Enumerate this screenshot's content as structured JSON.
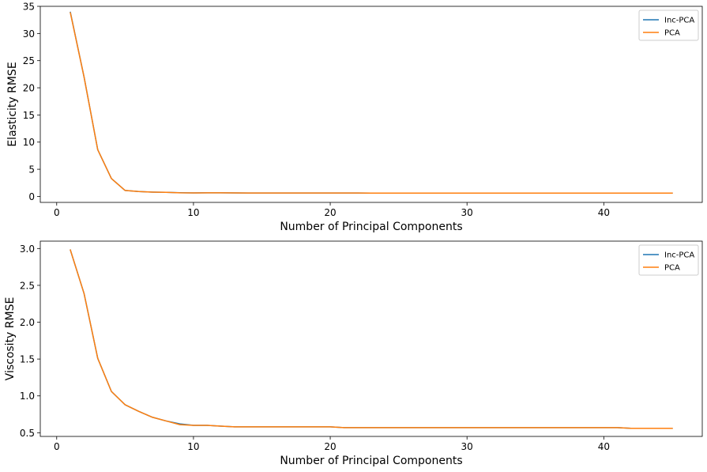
{
  "chart_data": [
    {
      "type": "line",
      "xlabel": "Number of Principal Components",
      "ylabel": "Elasticity RMSE",
      "xlim": [
        -1.2,
        47.2
      ],
      "ylim": [
        -1.1,
        35.0
      ],
      "xticks": [
        0,
        10,
        20,
        30,
        40
      ],
      "yticks": [
        0,
        5,
        10,
        15,
        20,
        25,
        30,
        35
      ],
      "grid": false,
      "legend_position": "top-right",
      "x": [
        1,
        2,
        3,
        4,
        5,
        6,
        7,
        8,
        9,
        10,
        11,
        12,
        13,
        14,
        15,
        16,
        17,
        18,
        19,
        20,
        21,
        22,
        23,
        24,
        25,
        26,
        27,
        28,
        29,
        30,
        31,
        32,
        33,
        34,
        35,
        36,
        37,
        38,
        39,
        40,
        41,
        42,
        43,
        44,
        45
      ],
      "series": [
        {
          "name": "Inc-PCA",
          "color": "#1f77b4",
          "values": [
            33.9,
            22.0,
            8.6,
            3.3,
            1.1,
            0.9,
            0.8,
            0.75,
            0.68,
            0.65,
            0.67,
            0.66,
            0.64,
            0.63,
            0.63,
            0.63,
            0.62,
            0.62,
            0.62,
            0.62,
            0.62,
            0.62,
            0.61,
            0.61,
            0.61,
            0.61,
            0.61,
            0.61,
            0.61,
            0.61,
            0.61,
            0.61,
            0.61,
            0.61,
            0.61,
            0.61,
            0.61,
            0.61,
            0.61,
            0.61,
            0.61,
            0.61,
            0.61,
            0.61,
            0.61
          ]
        },
        {
          "name": "PCA",
          "color": "#ff7f0e",
          "values": [
            33.8,
            22.0,
            8.6,
            3.3,
            1.1,
            0.9,
            0.8,
            0.75,
            0.67,
            0.65,
            0.66,
            0.66,
            0.64,
            0.63,
            0.63,
            0.63,
            0.62,
            0.62,
            0.62,
            0.62,
            0.62,
            0.62,
            0.61,
            0.61,
            0.61,
            0.61,
            0.61,
            0.61,
            0.61,
            0.61,
            0.61,
            0.61,
            0.61,
            0.61,
            0.61,
            0.61,
            0.61,
            0.61,
            0.61,
            0.61,
            0.61,
            0.61,
            0.61,
            0.61,
            0.61
          ]
        }
      ]
    },
    {
      "type": "line",
      "xlabel": "Number of Principal Components",
      "ylabel": "Viscosity RMSE",
      "xlim": [
        -1.2,
        47.2
      ],
      "ylim": [
        0.45,
        3.1
      ],
      "xticks": [
        0,
        10,
        20,
        30,
        40
      ],
      "yticks": [
        0.5,
        1.0,
        1.5,
        2.0,
        2.5,
        3.0
      ],
      "ytick_labels": [
        "0.5",
        "1.0",
        "1.5",
        "2.0",
        "2.5",
        "3.0"
      ],
      "grid": false,
      "legend_position": "top-right",
      "x": [
        1,
        2,
        3,
        4,
        5,
        6,
        7,
        8,
        9,
        10,
        11,
        12,
        13,
        14,
        15,
        16,
        17,
        18,
        19,
        20,
        21,
        22,
        23,
        24,
        25,
        26,
        27,
        28,
        29,
        30,
        31,
        32,
        33,
        34,
        35,
        36,
        37,
        38,
        39,
        40,
        41,
        42,
        43,
        44,
        45
      ],
      "series": [
        {
          "name": "Inc-PCA",
          "color": "#1f77b4",
          "values": [
            2.98,
            2.39,
            1.51,
            1.06,
            0.88,
            0.79,
            0.71,
            0.66,
            0.62,
            0.6,
            0.6,
            0.59,
            0.58,
            0.58,
            0.58,
            0.58,
            0.58,
            0.58,
            0.58,
            0.58,
            0.57,
            0.57,
            0.57,
            0.57,
            0.57,
            0.57,
            0.57,
            0.57,
            0.57,
            0.57,
            0.57,
            0.57,
            0.57,
            0.57,
            0.57,
            0.57,
            0.57,
            0.57,
            0.57,
            0.57,
            0.57,
            0.56,
            0.56,
            0.56,
            0.56
          ]
        },
        {
          "name": "PCA",
          "color": "#ff7f0e",
          "values": [
            2.98,
            2.39,
            1.51,
            1.06,
            0.88,
            0.79,
            0.71,
            0.66,
            0.61,
            0.6,
            0.6,
            0.59,
            0.58,
            0.58,
            0.58,
            0.58,
            0.58,
            0.58,
            0.58,
            0.58,
            0.57,
            0.57,
            0.57,
            0.57,
            0.57,
            0.57,
            0.57,
            0.57,
            0.57,
            0.57,
            0.57,
            0.57,
            0.57,
            0.57,
            0.57,
            0.57,
            0.57,
            0.57,
            0.57,
            0.57,
            0.57,
            0.56,
            0.56,
            0.56,
            0.56
          ]
        }
      ]
    }
  ]
}
